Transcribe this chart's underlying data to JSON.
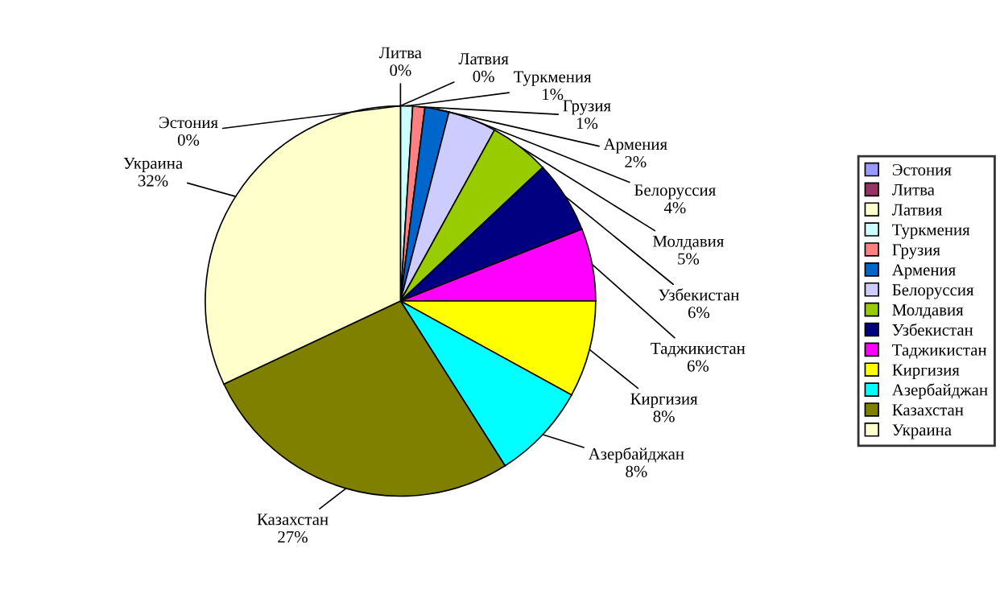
{
  "chart_data": {
    "type": "pie",
    "categories": [
      "Эстония",
      "Литва",
      "Латвия",
      "Туркмения",
      "Грузия",
      "Армения",
      "Белоруссия",
      "Молдавия",
      "Узбекистан",
      "Таджикистан",
      "Киргизия",
      "Азербайджан",
      "Казахстан",
      "Украина"
    ],
    "values": [
      0,
      0,
      0,
      1,
      1,
      2,
      4,
      5,
      6,
      6,
      8,
      8,
      27,
      32
    ],
    "value_labels": [
      "0%",
      "0%",
      "0%",
      "1%",
      "1%",
      "2%",
      "4%",
      "5%",
      "6%",
      "6%",
      "8%",
      "8%",
      "27%",
      "32%"
    ],
    "colors": [
      "#9999ff",
      "#993366",
      "#ffffcc",
      "#ccffff",
      "#ff8080",
      "#0066cc",
      "#ccccff",
      "#99cc00",
      "#000080",
      "#ff00ff",
      "#ffff00",
      "#00ffff",
      "#808000",
      "#ffffcc"
    ],
    "legend": "right"
  }
}
